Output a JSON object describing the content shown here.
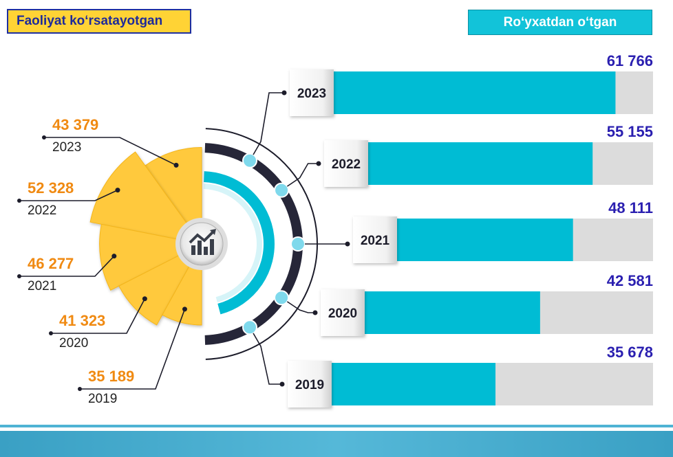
{
  "header": {
    "left_title": "Faoliyat koʻrsatayotgan",
    "right_title": "Roʻyxatdan oʻtgan"
  },
  "colors": {
    "accent_yellow": "#ffc93c",
    "accent_cyan": "#00bcd4",
    "bar_track": "#dcdcdc",
    "value_blue": "#2a1fb0",
    "value_orange": "#f08a12",
    "ring_dark": "#262638"
  },
  "center_icon": "growth-chart-icon",
  "chart_data": [
    {
      "type": "pie",
      "title": "Faoliyat koʻrsatayotgan",
      "categories": [
        "2023",
        "2022",
        "2021",
        "2020",
        "2019"
      ],
      "values": [
        43379,
        52328,
        46277,
        41323,
        35189
      ],
      "labels": [
        "43 379",
        "52 328",
        "46 277",
        "41 323",
        "35 189"
      ]
    },
    {
      "type": "bar",
      "title": "Roʻyxatdan oʻtgan",
      "categories": [
        "2023",
        "2022",
        "2021",
        "2020",
        "2019"
      ],
      "values": [
        61766,
        55155,
        48111,
        42581,
        35678
      ],
      "labels": [
        "61 766",
        "55 155",
        "48 111",
        "42 581",
        "35 678"
      ],
      "xlim": [
        0,
        70000
      ]
    }
  ]
}
